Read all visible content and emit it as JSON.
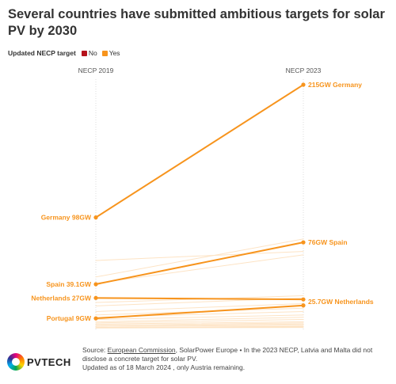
{
  "title": "Several countries have submitted ambitious targets for solar PV by 2030",
  "legend": {
    "label": "Updated NECP target",
    "items": [
      {
        "name": "No",
        "color": "#b5121b"
      },
      {
        "name": "Yes",
        "color": "#f7941d"
      }
    ]
  },
  "chart_data": {
    "type": "line",
    "x": [
      "NECP 2019",
      "NECP 2023"
    ],
    "ylim": [
      0,
      215
    ],
    "grid": false,
    "series": [
      {
        "country": "Germany",
        "values": [
          98,
          215
        ],
        "label_start": "Germany 98GW",
        "label_end": "215GW Germany",
        "highlight": true
      },
      {
        "country": "Spain",
        "values": [
          39.1,
          76
        ],
        "label_start": "Spain 39.1GW",
        "label_end": "76GW Spain",
        "highlight": true
      },
      {
        "country": "Netherlands",
        "values": [
          27,
          25.7
        ],
        "label_start": "Netherlands 27GW",
        "label_end": "25.7GW Netherlands",
        "highlight": true
      },
      {
        "country": "Portugal",
        "values": [
          9,
          20.4
        ],
        "label_start": "Portugal 9GW",
        "label_end": "",
        "highlight": true
      },
      {
        "values": [
          45.5,
          79
        ],
        "highlight": false
      },
      {
        "values": [
          60,
          68
        ],
        "highlight": false
      },
      {
        "values": [
          40,
          65
        ],
        "highlight": false
      },
      {
        "values": [
          23,
          29
        ],
        "highlight": false
      },
      {
        "values": [
          20,
          27
        ],
        "highlight": false
      },
      {
        "values": [
          15,
          22
        ],
        "highlight": false
      },
      {
        "values": [
          12,
          18
        ],
        "highlight": false
      },
      {
        "values": [
          10,
          15
        ],
        "highlight": false
      },
      {
        "values": [
          8,
          12
        ],
        "highlight": false
      },
      {
        "values": [
          6,
          10
        ],
        "highlight": false
      },
      {
        "values": [
          5,
          8
        ],
        "highlight": false
      },
      {
        "values": [
          4,
          6
        ],
        "highlight": false
      },
      {
        "values": [
          3,
          5
        ],
        "highlight": false
      },
      {
        "values": [
          2,
          4
        ],
        "highlight": false
      },
      {
        "values": [
          2,
          3
        ],
        "highlight": false
      },
      {
        "values": [
          1,
          2
        ],
        "highlight": false
      },
      {
        "values": [
          1,
          1.5
        ],
        "highlight": false
      },
      {
        "values": [
          0.5,
          1
        ],
        "highlight": false
      }
    ]
  },
  "footer": {
    "source_label": "Source:",
    "source_link": "European Commission",
    "source_rest": ", SolarPower Europe • In the 2023 NECP, Latvia and Malta did not disclose a concrete target for solar PV.",
    "updated": "Updated as of 18 March 2024 , only Austria remaining."
  },
  "logo": {
    "text": "PVTECH"
  },
  "colors": {
    "accent": "#f7941d",
    "faded": "#fde3c4"
  }
}
